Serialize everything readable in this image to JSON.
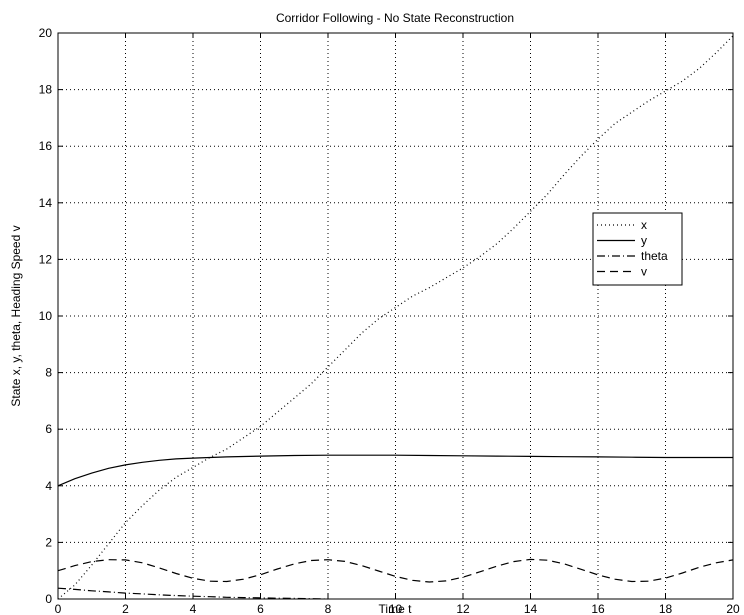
{
  "chart_data": {
    "type": "line",
    "title": "Corridor Following - No State Reconstruction",
    "xlabel": "Time t",
    "ylabel": "State x, y, theta, Heading Speed v",
    "xlim": [
      0,
      20
    ],
    "ylim": [
      0,
      20
    ],
    "xticks": [
      "0",
      "2",
      "4",
      "6",
      "8",
      "10",
      "12",
      "14",
      "16",
      "18",
      "20"
    ],
    "yticks": [
      "0",
      "2",
      "4",
      "6",
      "8",
      "10",
      "12",
      "14",
      "16",
      "18",
      "20"
    ],
    "grid": true,
    "legend_position": "right",
    "series": [
      {
        "name": "x",
        "style": "dotted",
        "color": "#000000",
        "x": [
          0,
          0.5,
          1,
          1.5,
          2,
          2.5,
          3,
          3.5,
          4,
          4.5,
          5,
          5.5,
          6,
          6.5,
          7,
          7.5,
          8,
          8.5,
          9,
          9.5,
          10,
          10.5,
          11,
          11.5,
          12,
          12.5,
          13,
          13.5,
          14,
          14.5,
          15,
          15.5,
          16,
          16.5,
          17,
          17.5,
          18,
          18.5,
          19,
          19.5,
          20
        ],
        "y": [
          0,
          0.5,
          1.2,
          1.95,
          2.7,
          3.3,
          3.85,
          4.3,
          4.65,
          5.0,
          5.3,
          5.7,
          6.1,
          6.6,
          7.1,
          7.6,
          8.2,
          8.8,
          9.4,
          9.9,
          10.3,
          10.7,
          11.0,
          11.35,
          11.7,
          12.1,
          12.55,
          13.1,
          13.7,
          14.3,
          15.0,
          15.65,
          16.25,
          16.8,
          17.2,
          17.6,
          17.95,
          18.3,
          18.75,
          19.3,
          19.9
        ]
      },
      {
        "name": "y",
        "style": "solid",
        "color": "#000000",
        "x": [
          0,
          0.5,
          1,
          1.5,
          2,
          2.5,
          3,
          3.5,
          4,
          4.5,
          5,
          6,
          7,
          8,
          9,
          10,
          11,
          12,
          13,
          14,
          15,
          16,
          17,
          18,
          19,
          20
        ],
        "y": [
          4.0,
          4.25,
          4.45,
          4.62,
          4.74,
          4.83,
          4.9,
          4.95,
          4.98,
          5.0,
          5.02,
          5.05,
          5.07,
          5.08,
          5.08,
          5.08,
          5.07,
          5.06,
          5.05,
          5.04,
          5.03,
          5.02,
          5.01,
          5.0,
          5.0,
          5.0
        ]
      },
      {
        "name": "theta",
        "style": "dashdot",
        "color": "#000000",
        "x": [
          0,
          0.5,
          1,
          1.5,
          2,
          2.5,
          3,
          3.5,
          4,
          4.5,
          5,
          5.5,
          6,
          6.5,
          7,
          7.5,
          8
        ],
        "y": [
          0.38,
          0.34,
          0.29,
          0.25,
          0.21,
          0.18,
          0.15,
          0.12,
          0.1,
          0.08,
          0.06,
          0.05,
          0.04,
          0.03,
          0.02,
          0.01,
          0.0
        ]
      },
      {
        "name": "v",
        "style": "dashed",
        "color": "#000000",
        "x": [
          0,
          0.5,
          1,
          1.5,
          2,
          2.5,
          3,
          3.5,
          4,
          4.5,
          5,
          5.5,
          6,
          6.5,
          7,
          7.5,
          8,
          8.5,
          9,
          9.5,
          10,
          10.5,
          11,
          11.5,
          12,
          12.5,
          13,
          13.5,
          14,
          14.5,
          15,
          15.5,
          16,
          16.5,
          17,
          17.5,
          18,
          18.5,
          19,
          19.5,
          20
        ],
        "y": [
          1.0,
          1.18,
          1.32,
          1.39,
          1.38,
          1.28,
          1.1,
          0.9,
          0.73,
          0.63,
          0.62,
          0.7,
          0.86,
          1.06,
          1.24,
          1.36,
          1.39,
          1.33,
          1.18,
          0.99,
          0.8,
          0.66,
          0.6,
          0.64,
          0.77,
          0.96,
          1.16,
          1.32,
          1.4,
          1.37,
          1.24,
          1.05,
          0.85,
          0.7,
          0.62,
          0.63,
          0.74,
          0.92,
          1.12,
          1.28,
          1.38
        ]
      }
    ]
  }
}
